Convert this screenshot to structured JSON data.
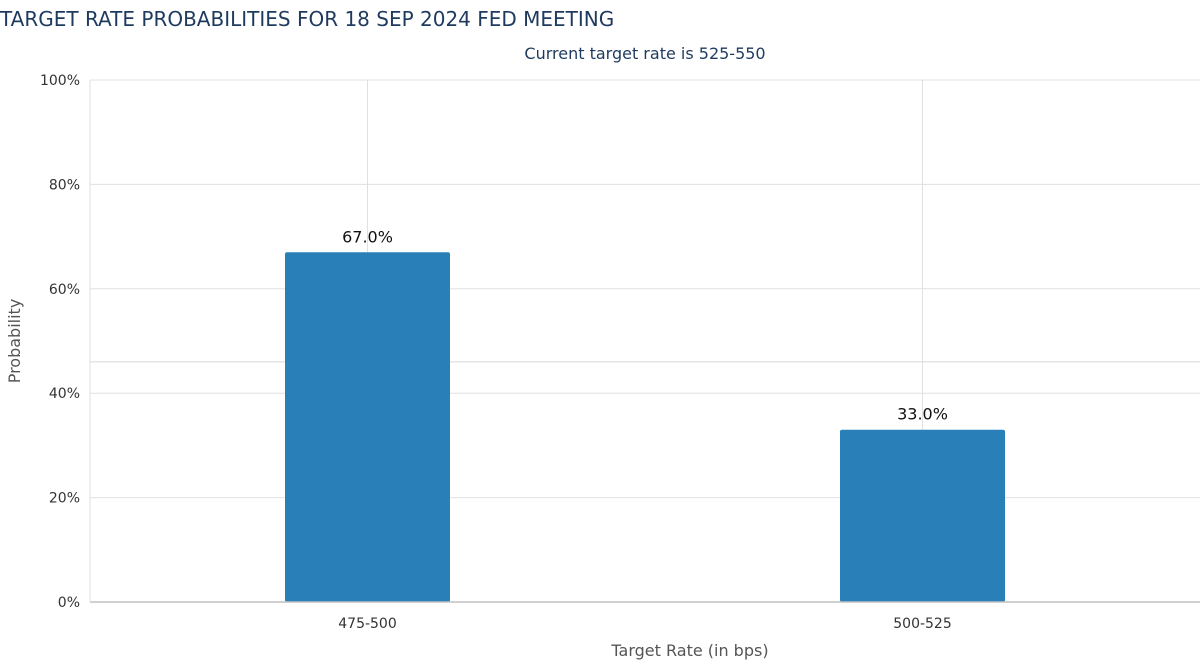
{
  "chart_data": {
    "type": "bar",
    "title": "TARGET RATE PROBABILITIES FOR 18 SEP 2024 FED MEETING",
    "subtitle": "Current target rate is 525-550",
    "xlabel": "Target Rate (in bps)",
    "ylabel": "Probability",
    "categories": [
      "475-500",
      "500-525"
    ],
    "values": [
      67.0,
      33.0
    ],
    "data_labels": [
      "67.0%",
      "33.0%"
    ],
    "ylim": [
      0,
      100
    ],
    "y_ticks": [
      0,
      20,
      40,
      60,
      80,
      100
    ],
    "y_tick_labels": [
      "0%",
      "20%",
      "40%",
      "60%",
      "80%",
      "100%"
    ],
    "reference_line_y": 46,
    "grid": true,
    "legend": "none",
    "bar_color": "#2980b9"
  }
}
